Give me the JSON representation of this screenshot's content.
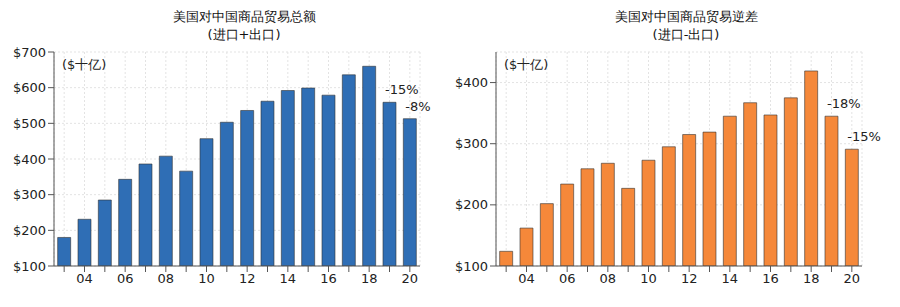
{
  "chart_data": [
    {
      "type": "bar",
      "title": "美国对中国商品贸易总额",
      "subtitle": "(进口+出口)",
      "unit_label": "($十亿)",
      "categories": [
        null,
        "04",
        null,
        "06",
        null,
        "08",
        null,
        "10",
        null,
        "12",
        null,
        "14",
        null,
        "16",
        null,
        "18",
        null,
        "20"
      ],
      "values": [
        180,
        231,
        285,
        343,
        386,
        408,
        366,
        457,
        503,
        536,
        562,
        592,
        599,
        579,
        636,
        660,
        559,
        513
      ],
      "color": "#2f6eb5",
      "ylim": [
        100,
        700
      ],
      "yticks": [
        {
          "value": 100,
          "label": "$100"
        },
        {
          "value": 200,
          "label": "$200"
        },
        {
          "value": 300,
          "label": "$300"
        },
        {
          "value": 400,
          "label": "$400"
        },
        {
          "value": 500,
          "label": "$500"
        },
        {
          "value": 600,
          "label": "$600"
        },
        {
          "value": 700,
          "label": "$700"
        }
      ],
      "grid": true,
      "annotations": [
        {
          "text": "-15%",
          "at": 16
        },
        {
          "text": "-8%",
          "at": 17
        }
      ]
    },
    {
      "type": "bar",
      "title": "美国对中国商品贸易逆差",
      "subtitle": "(进口-出口)",
      "unit_label": "($十亿)",
      "categories": [
        null,
        "04",
        null,
        "06",
        null,
        "08",
        null,
        "10",
        null,
        "12",
        null,
        "14",
        null,
        "16",
        null,
        "18",
        null,
        "20"
      ],
      "values": [
        124,
        162,
        202,
        234,
        259,
        268,
        227,
        273,
        295,
        315,
        319,
        345,
        367,
        347,
        375,
        419,
        345,
        291
      ],
      "color": "#f5883a",
      "ylim": [
        100,
        450
      ],
      "yticks": [
        {
          "value": 100,
          "label": "$100"
        },
        {
          "value": 200,
          "label": "$200"
        },
        {
          "value": 300,
          "label": "$300"
        },
        {
          "value": 400,
          "label": "$400"
        }
      ],
      "grid": true,
      "annotations": [
        {
          "text": "-18%",
          "at": 16
        },
        {
          "text": "-15%",
          "at": 17
        }
      ]
    }
  ]
}
